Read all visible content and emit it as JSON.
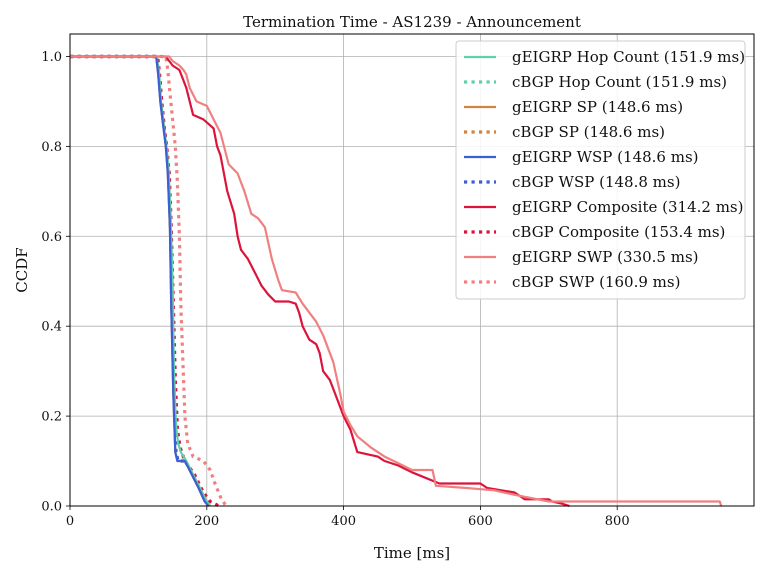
{
  "chart_data": {
    "type": "line",
    "title": "Termination Time - AS1239 - Announcement",
    "xlabel": "Time [ms]",
    "ylabel": "CCDF",
    "xlim": [
      0,
      1000
    ],
    "ylim": [
      0,
      1.05
    ],
    "xticks": [
      0,
      200,
      400,
      600,
      800
    ],
    "xtick_labels": [
      "0",
      "200",
      "400",
      "600",
      "800"
    ],
    "yticks": [
      0.0,
      0.2,
      0.4,
      0.6,
      0.8,
      1.0
    ],
    "ytick_labels": [
      "0.0",
      "0.2",
      "0.4",
      "0.6",
      "0.8",
      "1.0"
    ],
    "grid": true,
    "legend_position": "top-right",
    "series": [
      {
        "name": "gEIGRP Hop Count (151.9 ms)",
        "color": "#5fcfac",
        "dash": "solid",
        "points": [
          [
            0,
            1.0
          ],
          [
            126,
            1.0
          ],
          [
            130,
            0.97
          ],
          [
            133,
            0.9
          ],
          [
            137,
            0.85
          ],
          [
            141,
            0.8
          ],
          [
            144,
            0.75
          ],
          [
            147,
            0.65
          ],
          [
            150,
            0.5
          ],
          [
            152,
            0.3
          ],
          [
            155,
            0.18
          ],
          [
            158,
            0.14
          ],
          [
            162,
            0.12
          ],
          [
            170,
            0.1
          ],
          [
            180,
            0.07
          ],
          [
            190,
            0.04
          ],
          [
            200,
            0.01
          ],
          [
            205,
            0.0
          ]
        ]
      },
      {
        "name": "cBGP Hop Count (151.9 ms)",
        "color": "#5fcfac",
        "dash": "dotted",
        "points": [
          [
            0,
            1.0
          ],
          [
            128,
            1.0
          ],
          [
            131,
            0.96
          ],
          [
            134,
            0.9
          ],
          [
            138,
            0.84
          ],
          [
            142,
            0.79
          ],
          [
            145,
            0.74
          ],
          [
            148,
            0.62
          ],
          [
            151,
            0.45
          ],
          [
            154,
            0.28
          ],
          [
            157,
            0.17
          ],
          [
            161,
            0.13
          ],
          [
            168,
            0.1
          ],
          [
            180,
            0.07
          ],
          [
            192,
            0.03
          ],
          [
            200,
            0.01
          ],
          [
            208,
            0.0
          ]
        ]
      },
      {
        "name": "gEIGRP SP (148.6 ms)",
        "color": "#cd853f",
        "dash": "solid",
        "points": [
          [
            0,
            1.0
          ],
          [
            126,
            1.0
          ],
          [
            129,
            0.96
          ],
          [
            132,
            0.9
          ],
          [
            136,
            0.85
          ],
          [
            140,
            0.8
          ],
          [
            143,
            0.74
          ],
          [
            146,
            0.62
          ],
          [
            148,
            0.45
          ],
          [
            151,
            0.25
          ],
          [
            154,
            0.12
          ],
          [
            157,
            0.1
          ],
          [
            168,
            0.1
          ],
          [
            178,
            0.07
          ],
          [
            188,
            0.04
          ],
          [
            197,
            0.01
          ],
          [
            203,
            0.0
          ]
        ]
      },
      {
        "name": "cBGP SP (148.6 ms)",
        "color": "#cd853f",
        "dash": "dotted",
        "points": [
          [
            0,
            1.0
          ],
          [
            127,
            1.0
          ],
          [
            130,
            0.96
          ],
          [
            133,
            0.9
          ],
          [
            137,
            0.85
          ],
          [
            141,
            0.8
          ],
          [
            144,
            0.74
          ],
          [
            147,
            0.62
          ],
          [
            149,
            0.45
          ],
          [
            152,
            0.25
          ],
          [
            155,
            0.12
          ],
          [
            158,
            0.1
          ],
          [
            169,
            0.1
          ],
          [
            179,
            0.07
          ],
          [
            189,
            0.04
          ],
          [
            198,
            0.01
          ],
          [
            204,
            0.0
          ]
        ]
      },
      {
        "name": "gEIGRP WSP (148.6 ms)",
        "color": "#3a5fd6",
        "dash": "solid",
        "points": [
          [
            0,
            1.0
          ],
          [
            126,
            1.0
          ],
          [
            129,
            0.96
          ],
          [
            132,
            0.9
          ],
          [
            136,
            0.85
          ],
          [
            140,
            0.8
          ],
          [
            143,
            0.74
          ],
          [
            146,
            0.62
          ],
          [
            148,
            0.45
          ],
          [
            151,
            0.25
          ],
          [
            154,
            0.12
          ],
          [
            157,
            0.1
          ],
          [
            168,
            0.1
          ],
          [
            178,
            0.07
          ],
          [
            188,
            0.04
          ],
          [
            197,
            0.01
          ],
          [
            202,
            0.0
          ]
        ]
      },
      {
        "name": "cBGP WSP (148.8 ms)",
        "color": "#3a5fd6",
        "dash": "dotted",
        "points": [
          [
            0,
            1.0
          ],
          [
            127,
            1.0
          ],
          [
            130,
            0.96
          ],
          [
            133,
            0.9
          ],
          [
            137,
            0.85
          ],
          [
            141,
            0.8
          ],
          [
            144,
            0.74
          ],
          [
            147,
            0.62
          ],
          [
            149,
            0.45
          ],
          [
            152,
            0.25
          ],
          [
            155,
            0.12
          ],
          [
            158,
            0.1
          ],
          [
            169,
            0.1
          ],
          [
            179,
            0.07
          ],
          [
            189,
            0.04
          ],
          [
            198,
            0.01
          ],
          [
            204,
            0.0
          ]
        ]
      },
      {
        "name": "gEIGRP Composite (314.2 ms)",
        "color": "#dc143c",
        "dash": "solid",
        "points": [
          [
            0,
            1.0
          ],
          [
            140,
            1.0
          ],
          [
            145,
            0.99
          ],
          [
            150,
            0.98
          ],
          [
            160,
            0.97
          ],
          [
            165,
            0.95
          ],
          [
            170,
            0.93
          ],
          [
            180,
            0.87
          ],
          [
            195,
            0.86
          ],
          [
            210,
            0.84
          ],
          [
            215,
            0.8
          ],
          [
            220,
            0.78
          ],
          [
            230,
            0.7
          ],
          [
            240,
            0.65
          ],
          [
            245,
            0.6
          ],
          [
            250,
            0.57
          ],
          [
            260,
            0.55
          ],
          [
            270,
            0.52
          ],
          [
            280,
            0.49
          ],
          [
            290,
            0.47
          ],
          [
            300,
            0.455
          ],
          [
            320,
            0.455
          ],
          [
            330,
            0.45
          ],
          [
            335,
            0.43
          ],
          [
            340,
            0.4
          ],
          [
            350,
            0.37
          ],
          [
            360,
            0.36
          ],
          [
            365,
            0.34
          ],
          [
            370,
            0.3
          ],
          [
            380,
            0.28
          ],
          [
            390,
            0.24
          ],
          [
            400,
            0.2
          ],
          [
            410,
            0.17
          ],
          [
            420,
            0.12
          ],
          [
            450,
            0.11
          ],
          [
            460,
            0.1
          ],
          [
            480,
            0.09
          ],
          [
            500,
            0.075
          ],
          [
            540,
            0.05
          ],
          [
            560,
            0.05
          ],
          [
            600,
            0.05
          ],
          [
            610,
            0.04
          ],
          [
            650,
            0.03
          ],
          [
            665,
            0.015
          ],
          [
            700,
            0.015
          ],
          [
            705,
            0.01
          ],
          [
            720,
            0.005
          ],
          [
            730,
            0.0
          ]
        ]
      },
      {
        "name": "cBGP Composite (153.4 ms)",
        "color": "#dc143c",
        "dash": "dotted",
        "points": [
          [
            0,
            1.0
          ],
          [
            128,
            1.0
          ],
          [
            131,
            0.96
          ],
          [
            134,
            0.9
          ],
          [
            138,
            0.84
          ],
          [
            142,
            0.79
          ],
          [
            145,
            0.74
          ],
          [
            148,
            0.62
          ],
          [
            151,
            0.45
          ],
          [
            154,
            0.28
          ],
          [
            157,
            0.17
          ],
          [
            161,
            0.13
          ],
          [
            168,
            0.1
          ],
          [
            182,
            0.07
          ],
          [
            195,
            0.03
          ],
          [
            205,
            0.01
          ],
          [
            218,
            0.0
          ]
        ]
      },
      {
        "name": "gEIGRP SWP (330.5 ms)",
        "color": "#f08080",
        "dash": "solid",
        "points": [
          [
            0,
            1.0
          ],
          [
            145,
            1.0
          ],
          [
            150,
            0.99
          ],
          [
            160,
            0.98
          ],
          [
            166,
            0.97
          ],
          [
            170,
            0.96
          ],
          [
            175,
            0.93
          ],
          [
            185,
            0.9
          ],
          [
            200,
            0.89
          ],
          [
            210,
            0.86
          ],
          [
            220,
            0.83
          ],
          [
            232,
            0.76
          ],
          [
            245,
            0.74
          ],
          [
            255,
            0.7
          ],
          [
            265,
            0.65
          ],
          [
            275,
            0.64
          ],
          [
            285,
            0.62
          ],
          [
            295,
            0.55
          ],
          [
            305,
            0.5
          ],
          [
            310,
            0.48
          ],
          [
            330,
            0.475
          ],
          [
            340,
            0.45
          ],
          [
            350,
            0.43
          ],
          [
            360,
            0.41
          ],
          [
            370,
            0.38
          ],
          [
            375,
            0.36
          ],
          [
            385,
            0.32
          ],
          [
            395,
            0.25
          ],
          [
            400,
            0.21
          ],
          [
            410,
            0.18
          ],
          [
            420,
            0.155
          ],
          [
            440,
            0.13
          ],
          [
            460,
            0.11
          ],
          [
            480,
            0.095
          ],
          [
            500,
            0.08
          ],
          [
            530,
            0.08
          ],
          [
            535,
            0.045
          ],
          [
            580,
            0.04
          ],
          [
            620,
            0.035
          ],
          [
            650,
            0.025
          ],
          [
            700,
            0.01
          ],
          [
            800,
            0.01
          ],
          [
            950,
            0.01
          ],
          [
            952,
            0.0
          ]
        ]
      },
      {
        "name": "cBGP SWP (160.9 ms)",
        "color": "#f08080",
        "dash": "dotted",
        "points": [
          [
            0,
            1.0
          ],
          [
            140,
            1.0
          ],
          [
            143,
            0.97
          ],
          [
            146,
            0.92
          ],
          [
            150,
            0.86
          ],
          [
            154,
            0.8
          ],
          [
            157,
            0.72
          ],
          [
            160,
            0.6
          ],
          [
            162,
            0.45
          ],
          [
            165,
            0.32
          ],
          [
            168,
            0.2
          ],
          [
            172,
            0.14
          ],
          [
            180,
            0.11
          ],
          [
            195,
            0.1
          ],
          [
            205,
            0.08
          ],
          [
            212,
            0.05
          ],
          [
            220,
            0.02
          ],
          [
            228,
            0.0
          ]
        ]
      }
    ]
  }
}
